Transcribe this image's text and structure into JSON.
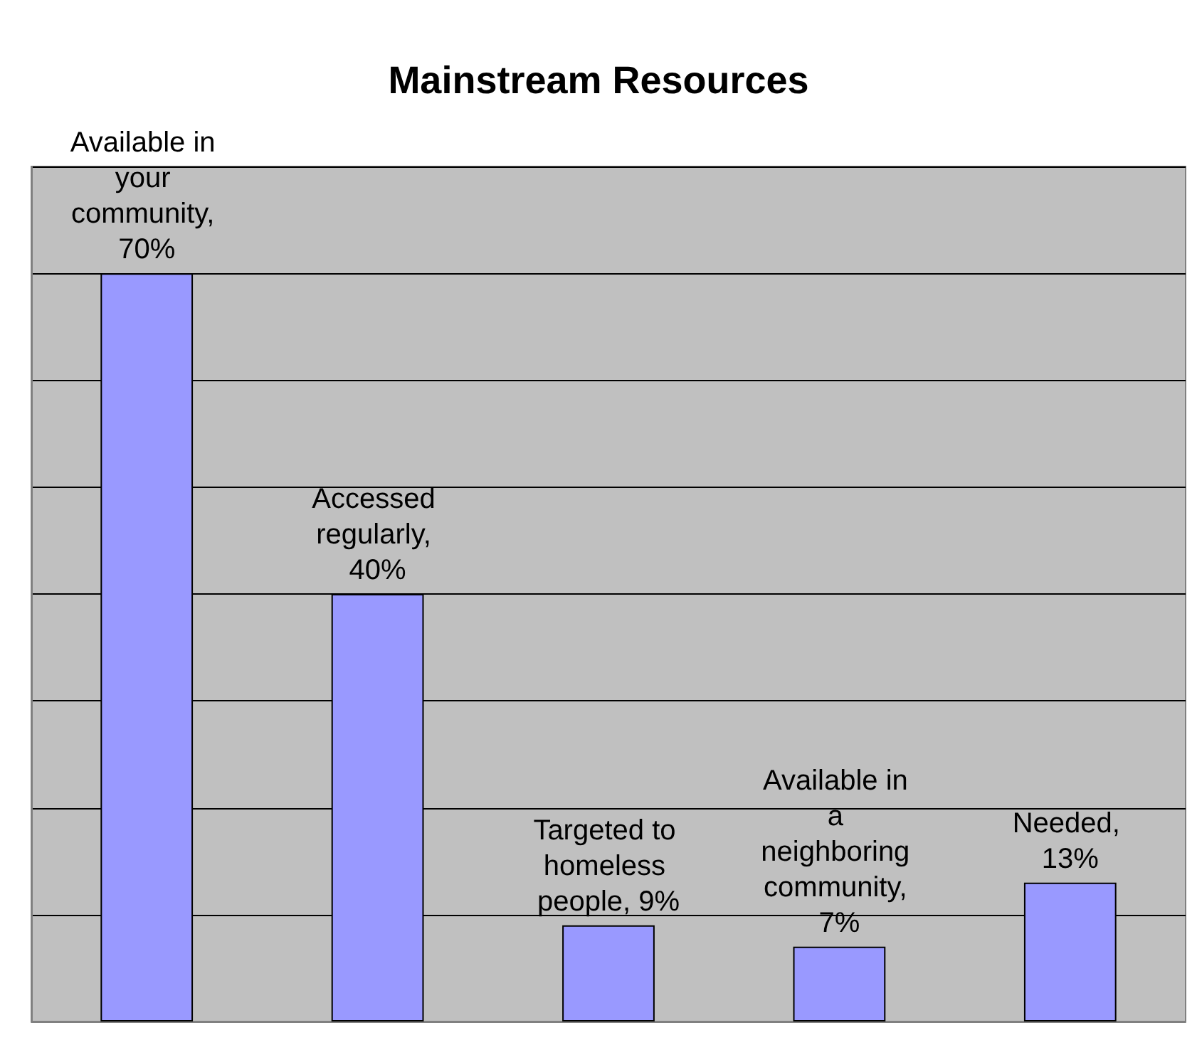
{
  "chart_data": {
    "type": "bar",
    "title": "Mainstream Resources",
    "categories": [
      null,
      null,
      null,
      null,
      null
    ],
    "values": [
      70,
      40,
      9,
      7,
      13
    ],
    "value_labels": [
      "Available in your community, 70%",
      "Accessed regularly, 40%",
      "Targeted to homeless people, 9%",
      "Available in a neighboring community, 7%",
      "Needed, 13%"
    ],
    "color": "#9999ff",
    "ylim": [
      0,
      80
    ],
    "yticks": [
      {
        "value": 0,
        "label": null
      },
      {
        "value": 10,
        "label": null
      },
      {
        "value": 20,
        "label": null
      },
      {
        "value": 30,
        "label": null
      },
      {
        "value": 40,
        "label": null
      },
      {
        "value": 50,
        "label": null
      },
      {
        "value": 60,
        "label": null
      },
      {
        "value": 70,
        "label": null
      },
      {
        "value": 80,
        "label": null
      }
    ],
    "grid": "y"
  }
}
